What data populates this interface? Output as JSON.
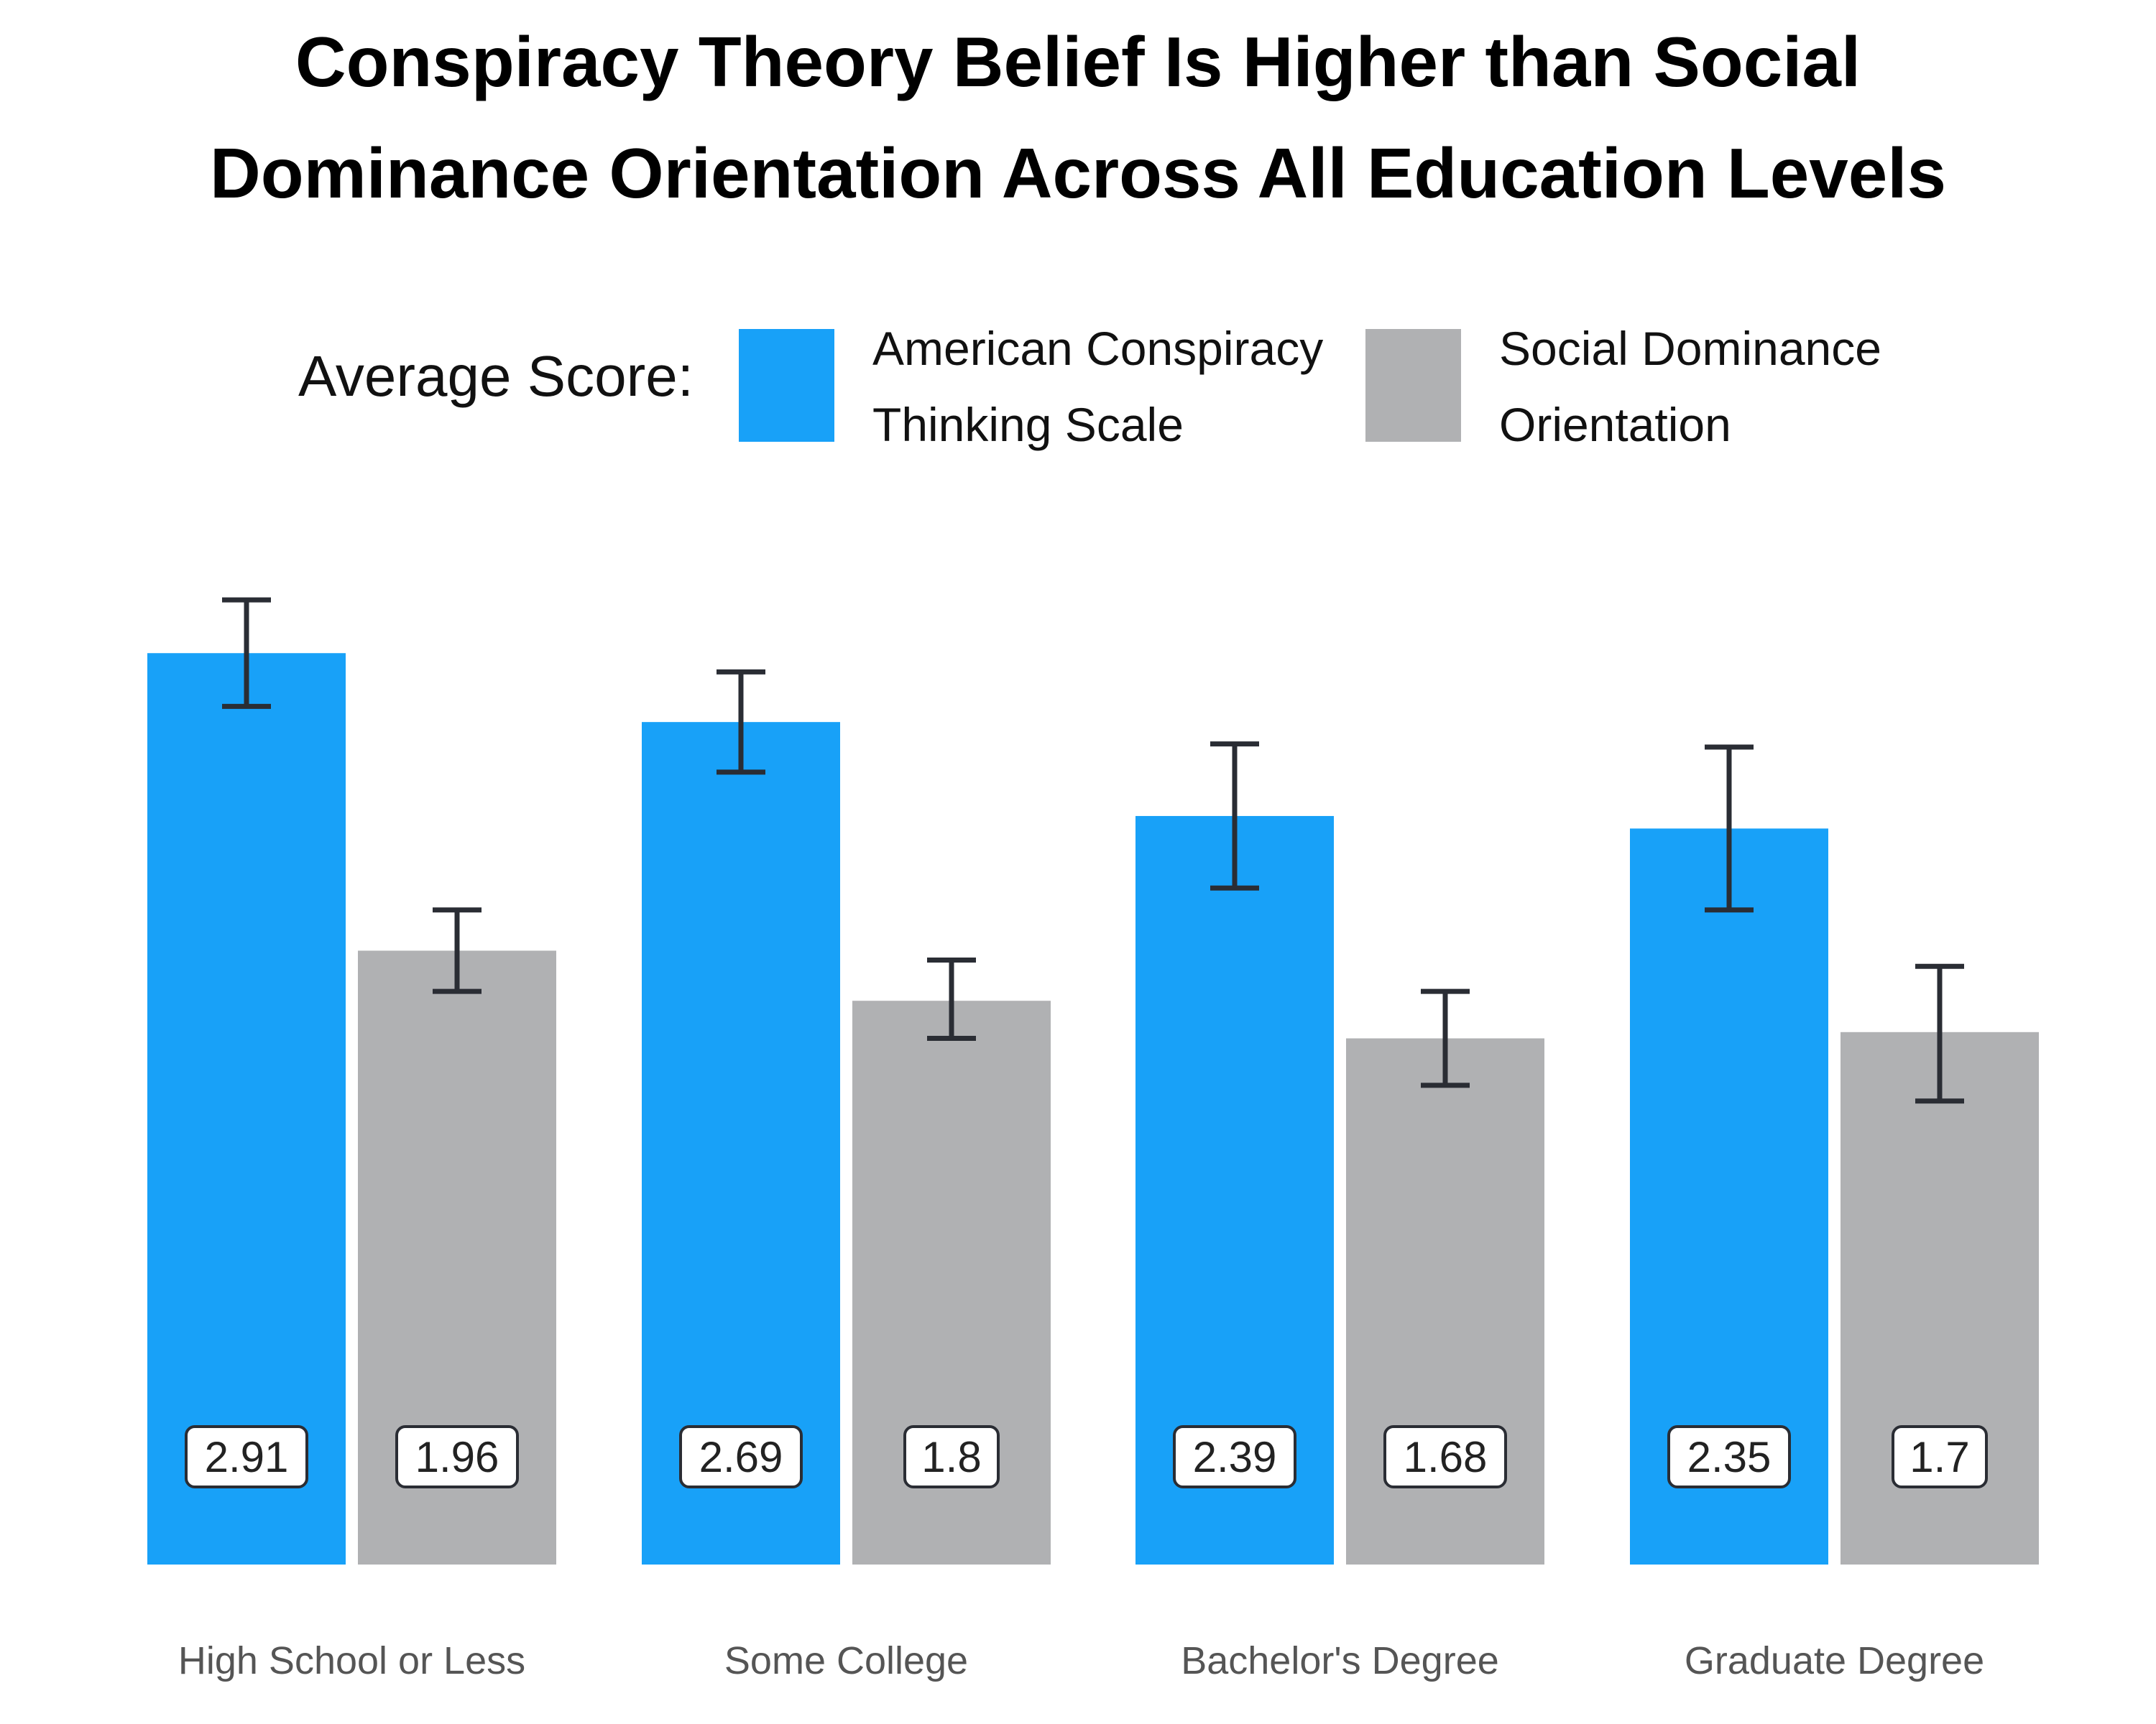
{
  "title_lines": [
    "Conspiracy Theory Belief Is Higher than Social",
    "Dominance Orientation Across All Education Levels"
  ],
  "legend": {
    "prefix": "Average Score:",
    "items": [
      {
        "lines": [
          "American Conspiracy",
          "Thinking Scale"
        ],
        "color": "#18a1f8"
      },
      {
        "lines": [
          "Social Dominance",
          "Orientation"
        ],
        "color": "#b0b1b3"
      }
    ]
  },
  "chart_data": {
    "type": "bar",
    "title": "Conspiracy Theory Belief Is Higher than Social Dominance Orientation Across All Education Levels",
    "categories": [
      "High School or Less",
      "Some College",
      "Bachelor's Degree",
      "Graduate Degree"
    ],
    "series": [
      {
        "name": "American Conspiracy Thinking Scale",
        "color": "#18a1f8",
        "values": [
          2.91,
          2.69,
          2.39,
          2.35
        ],
        "labels": [
          "2.91",
          "2.69",
          "2.39",
          "2.35"
        ],
        "error_low": [
          2.74,
          2.53,
          2.16,
          2.09
        ],
        "error_high": [
          3.08,
          2.85,
          2.62,
          2.61
        ]
      },
      {
        "name": "Social Dominance Orientation",
        "color": "#b0b1b3",
        "values": [
          1.96,
          1.8,
          1.68,
          1.7
        ],
        "labels": [
          "1.96",
          "1.8",
          "1.68",
          "1.7"
        ],
        "error_low": [
          1.83,
          1.68,
          1.53,
          1.48
        ],
        "error_high": [
          2.09,
          1.93,
          1.83,
          1.91
        ]
      }
    ],
    "ylim": [
      0,
      3.2
    ],
    "xlabel": "",
    "ylabel": "",
    "grid": false,
    "legend_position": "top"
  }
}
